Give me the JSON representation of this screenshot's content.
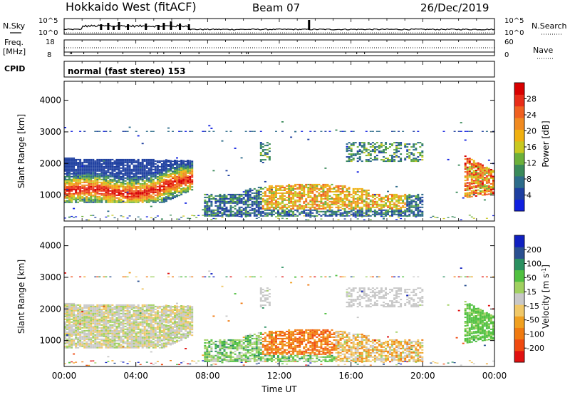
{
  "header": {
    "station": "Hokkaido West (fitACF)",
    "beam": "Beam 07",
    "date": "26/Dec/2019"
  },
  "params": {
    "nsky_label": "N.Sky",
    "nsky_ticks": [
      "10^5",
      "10^0"
    ],
    "nsearch_label": "N.Search",
    "nsearch_ticks": [
      "10^5",
      "10^0"
    ],
    "freq_label": "Freq.",
    "freq_unit": "[MHz]",
    "freq_ticks": [
      "18",
      "8"
    ],
    "nave_label": "Nave",
    "nave_ticks": [
      "60",
      "0"
    ],
    "cpid_label": "CPID",
    "cpid_value": "normal (fast stereo) 153"
  },
  "chart_data": [
    {
      "type": "heatmap",
      "name": "power",
      "ylabel": "Slant Range [km]",
      "ylim": [
        180,
        4600
      ],
      "yticks": [
        1000,
        2000,
        3000,
        4000
      ],
      "xlim": [
        0,
        24
      ],
      "colorbar": {
        "label": "Power [dB]",
        "ticks": [
          "4",
          "8",
          "12",
          "16",
          "20",
          "24",
          "28"
        ],
        "colors": [
          "#1020e0",
          "#1e3fa0",
          "#2d6c8a",
          "#3a8a5a",
          "#6cb03a",
          "#c8c820",
          "#f0b010",
          "#f08a20",
          "#f06020",
          "#e82c18",
          "#d80000"
        ]
      },
      "regions": [
        {
          "t0": 0.0,
          "t1": 7.2,
          "r0": 800,
          "r1": 2100,
          "level": "medium-high",
          "description_note": null
        },
        {
          "t0": 8.0,
          "t1": 20.0,
          "r0": 300,
          "r1": 1400,
          "level": "medium-high"
        },
        {
          "t0": 10.0,
          "t1": 20.0,
          "r0": 2000,
          "r1": 2700,
          "level": "low"
        },
        {
          "t0": 22.3,
          "t1": 24.0,
          "r0": 900,
          "r1": 2200,
          "level": "high"
        }
      ]
    },
    {
      "type": "heatmap",
      "name": "velocity",
      "ylabel": "Slant Range [km]",
      "xlabel": "Time UT",
      "ylim": [
        180,
        4600
      ],
      "yticks": [
        1000,
        2000,
        3000,
        4000
      ],
      "xlim": [
        0,
        24
      ],
      "xticks": [
        "00:00",
        "04:00",
        "08:00",
        "12:00",
        "16:00",
        "20:00",
        "00:00"
      ],
      "colorbar": {
        "label": "Velocity [m s",
        "label_sup": "-1",
        "label_end": "]",
        "ticks": [
          "-200",
          "-100",
          "-50",
          "-15",
          "15",
          "50",
          "100",
          "200"
        ],
        "colors": [
          "#e01010",
          "#f04a10",
          "#f07a10",
          "#f0a020",
          "#f0c868",
          "#c8c8c8",
          "#a0d060",
          "#50c040",
          "#2a9060",
          "#2a5090",
          "#1020c0"
        ]
      }
    }
  ]
}
